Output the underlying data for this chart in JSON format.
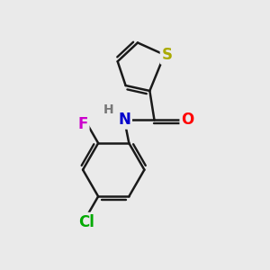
{
  "background_color": "#eaeaea",
  "bond_color": "#1a1a1a",
  "bond_width": 1.8,
  "atom_S": {
    "color": "#aaaa00",
    "fontsize": 12,
    "label": "S"
  },
  "atom_N": {
    "color": "#0000cc",
    "fontsize": 12,
    "label": "N"
  },
  "atom_O": {
    "color": "#ff0000",
    "fontsize": 12,
    "label": "O"
  },
  "atom_F": {
    "color": "#cc00cc",
    "fontsize": 12,
    "label": "F"
  },
  "atom_Cl": {
    "color": "#00aa00",
    "fontsize": 12,
    "label": "Cl"
  },
  "atom_H": {
    "color": "#777777",
    "fontsize": 10,
    "label": "H"
  },
  "figsize": [
    3.0,
    3.0
  ],
  "dpi": 100,
  "xlim": [
    0,
    10
  ],
  "ylim": [
    0,
    10
  ]
}
